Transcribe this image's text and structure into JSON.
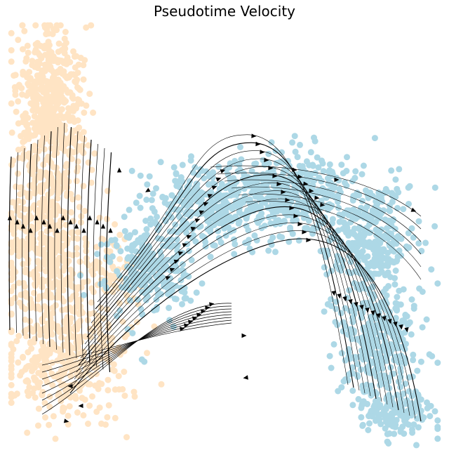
{
  "chart_data": {
    "type": "scatter",
    "title": "Pseudotime Velocity",
    "xlabel": "",
    "ylabel": "",
    "axes_visible": false,
    "grid": false,
    "legend": "none",
    "overlay": "streamlines",
    "series": [
      {
        "color": "#ffe4c4",
        "density_regions": [
          {
            "center": [
              0.1,
              0.8
            ],
            "spread": [
              0.05,
              0.12
            ],
            "n": 500
          },
          {
            "center": [
              0.09,
              0.5
            ],
            "spread": [
              0.06,
              0.15
            ],
            "n": 500
          },
          {
            "center": [
              0.13,
              0.22
            ],
            "spread": [
              0.09,
              0.1
            ],
            "n": 380
          },
          {
            "center": [
              0.24,
              0.4
            ],
            "spread": [
              0.05,
              0.08
            ],
            "n": 90
          }
        ]
      },
      {
        "color": "#add8e6",
        "density_regions": [
          {
            "center": [
              0.33,
              0.42
            ],
            "spread": [
              0.07,
              0.07
            ],
            "n": 260
          },
          {
            "center": [
              0.47,
              0.57
            ],
            "spread": [
              0.09,
              0.06
            ],
            "n": 340
          },
          {
            "center": [
              0.66,
              0.6
            ],
            "spread": [
              0.09,
              0.06
            ],
            "n": 380
          },
          {
            "center": [
              0.83,
              0.5
            ],
            "spread": [
              0.07,
              0.08
            ],
            "n": 330
          },
          {
            "center": [
              0.85,
              0.25
            ],
            "spread": [
              0.06,
              0.1
            ],
            "n": 360
          },
          {
            "center": [
              0.9,
              0.08
            ],
            "spread": [
              0.05,
              0.04
            ],
            "n": 140
          }
        ]
      }
    ],
    "xlim": [
      0,
      1
    ],
    "ylim": [
      0,
      1
    ]
  },
  "colors": {
    "bisque": "#ffe4c4",
    "lightblue": "#add8e6",
    "stream": "#000000"
  }
}
